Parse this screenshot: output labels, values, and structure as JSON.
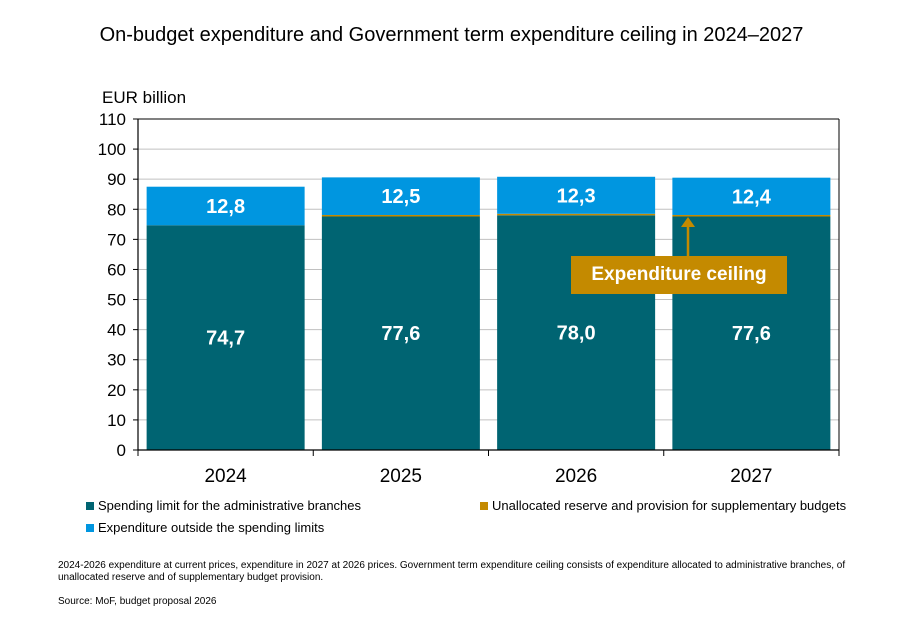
{
  "chart_data": {
    "type": "bar",
    "stacked": true,
    "title": "On-budget expenditure and Government term expenditure ceiling in 2024–2027",
    "ylabel": "EUR billion",
    "xlabel": "",
    "ylim": [
      0,
      110
    ],
    "yticks": [
      0,
      10,
      20,
      30,
      40,
      50,
      60,
      70,
      80,
      90,
      100,
      110
    ],
    "grid": true,
    "categories": [
      "2024",
      "2025",
      "2026",
      "2027"
    ],
    "series": [
      {
        "name": "Spending limit for the administrative branches",
        "color": "#006472",
        "values": [
          74.7,
          77.6,
          78.0,
          77.6
        ],
        "labels": [
          "74,7",
          "77,6",
          "78,0",
          "77,6"
        ]
      },
      {
        "name": "Unallocated reserve and provision for supplementary budgets",
        "color": "#c48a00",
        "values": [
          0,
          0.5,
          0.5,
          0.5
        ],
        "labels": null
      },
      {
        "name": "Expenditure outside the spending limits",
        "color": "#0096e0",
        "values": [
          12.8,
          12.5,
          12.3,
          12.4
        ],
        "labels": [
          "12,8",
          "12,5",
          "12,3",
          "12,4"
        ]
      }
    ],
    "annotation": {
      "text": "Expenditure ceiling",
      "color": "#c48a00",
      "target_category": "2027"
    },
    "legend_position": "bottom"
  },
  "legend": [
    {
      "label": "Spending limit for the administrative branches",
      "color": "#006472"
    },
    {
      "label": "Unallocated reserve and provision for supplementary budgets",
      "color": "#c48a00"
    },
    {
      "label": "Expenditure outside the spending limits",
      "color": "#0096e0"
    }
  ],
  "footnote": "2024-2026 expenditure at current prices, expenditure in 2027 at 2026 prices. Government term expenditure ceiling consists of expenditure allocated to administrative branches, of unallocated reserve and of supplementary budget provision.",
  "source": "Source: MoF, budget proposal 2026"
}
